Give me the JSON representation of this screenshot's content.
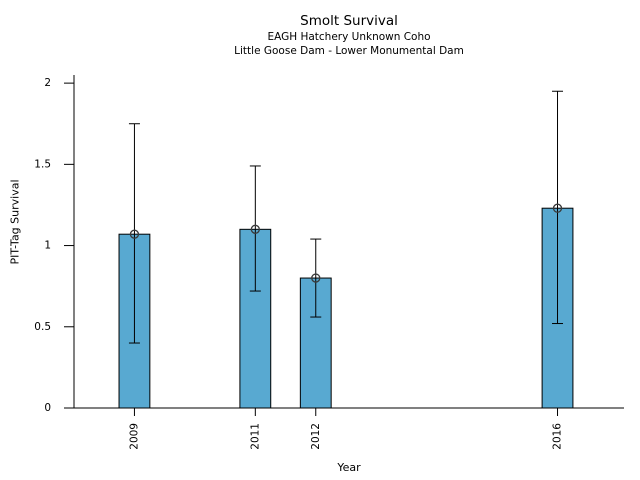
{
  "title": "Smolt Survival",
  "subtitle1": "EAGH Hatchery Unknown Coho",
  "subtitle2": "Little Goose Dam - Lower Monumental Dam",
  "chart_data": {
    "type": "bar",
    "title": "Smolt Survival",
    "subtitles": [
      "EAGH Hatchery Unknown Coho",
      "Little Goose Dam - Lower Monumental Dam"
    ],
    "xlabel": "Year",
    "ylabel": "PIT-Tag Survival",
    "categories": [
      "2009",
      "2011",
      "2012",
      "2016"
    ],
    "x": [
      2009,
      2011,
      2012,
      2016
    ],
    "values": [
      1.07,
      1.1,
      0.8,
      1.23
    ],
    "error_low": [
      0.4,
      0.72,
      0.56,
      0.52
    ],
    "error_high": [
      1.75,
      1.49,
      1.04,
      1.95
    ],
    "yticks": [
      0,
      0.5,
      1,
      1.5,
      2
    ],
    "ytick_labels": [
      "0",
      "0.5",
      "1",
      "1.5",
      "2"
    ],
    "ylim": [
      0,
      2.05
    ],
    "xlim": [
      2008.0,
      2017.1
    ],
    "bar_width_years": 0.51,
    "bar_color": "#58A9D1",
    "bar_edge_color": "#000000",
    "error_bar_color": "#000000",
    "marker": "open-circle",
    "marker_color": "#3a3a3a",
    "grid": false,
    "legend": null,
    "x_tick_label_rotation": 90
  }
}
